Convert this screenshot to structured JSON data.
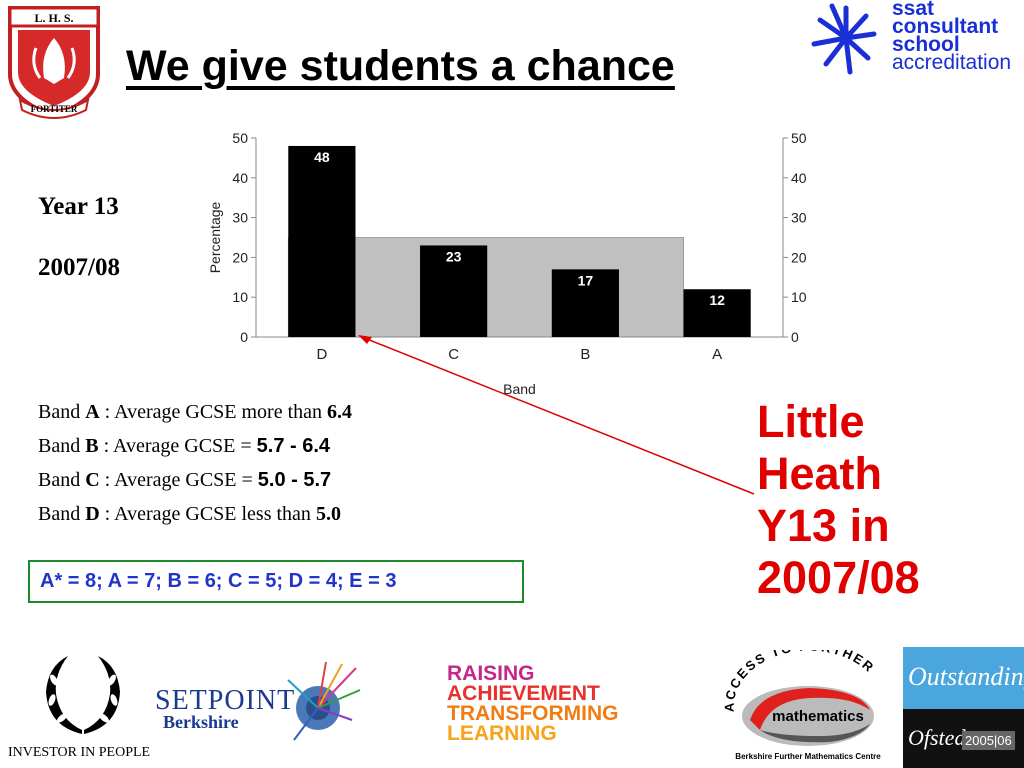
{
  "header": {
    "title": "We give students a chance",
    "crest_top": "L. H. S.",
    "crest_motto": "FORTITER",
    "ssat_line1": "ssat",
    "ssat_line2": "consultant",
    "ssat_line3": "school",
    "ssat_line4": "accreditation"
  },
  "side": {
    "year": "Year 13",
    "period": "2007/08"
  },
  "chart_data": {
    "type": "bar",
    "categories": [
      "D",
      "C",
      "B",
      "A"
    ],
    "values": [
      48,
      23,
      17,
      12
    ],
    "background_band": 25,
    "xlabel": "Band",
    "ylabel": "Percentage",
    "ylim": [
      0,
      50
    ],
    "yticks": [
      0,
      10,
      20,
      30,
      40,
      50
    ],
    "bar_color": "#000000",
    "band_color": "#c0c0c0",
    "secondary_axis": "right"
  },
  "bands": [
    {
      "pre": "Band ",
      "letter": "A",
      "mid": " : Average GCSE more than ",
      "value": "6.4"
    },
    {
      "pre": "Band ",
      "letter": "B",
      "mid": " : Average GCSE = ",
      "value": "5.7 - 6.4"
    },
    {
      "pre": "Band ",
      "letter": "C",
      "mid": " : Average GCSE = ",
      "value": "5.0 - 5.7"
    },
    {
      "pre": "Band ",
      "letter": "D",
      "mid": " : Average GCSE less than ",
      "value": "5.0"
    }
  ],
  "grades_box": "A* = 8; A = 7; B = 6; C = 5; D = 4; E = 3",
  "callout": {
    "line1": "Little",
    "line2": "Heath",
    "line3": "Y13 in",
    "line4": "2007/08",
    "color": "#e00000"
  },
  "footer": {
    "investor": "INVESTOR IN PEOPLE",
    "setpoint": "SETPOINT",
    "setpoint_sub": "Berkshire",
    "rat1": "RAISING",
    "rat2": "ACHIEVEMENT",
    "rat3": "TRANSFORMING",
    "rat4": "LEARNING",
    "afm_arc": "ACCESS TO FURTHER",
    "afm_word": "mathematics",
    "afm_sub": "Berkshire Further Mathematics Centre",
    "ofsted_outstanding": "Outstanding",
    "ofsted_name": "Ofsted",
    "ofsted_year": "2005|06"
  }
}
